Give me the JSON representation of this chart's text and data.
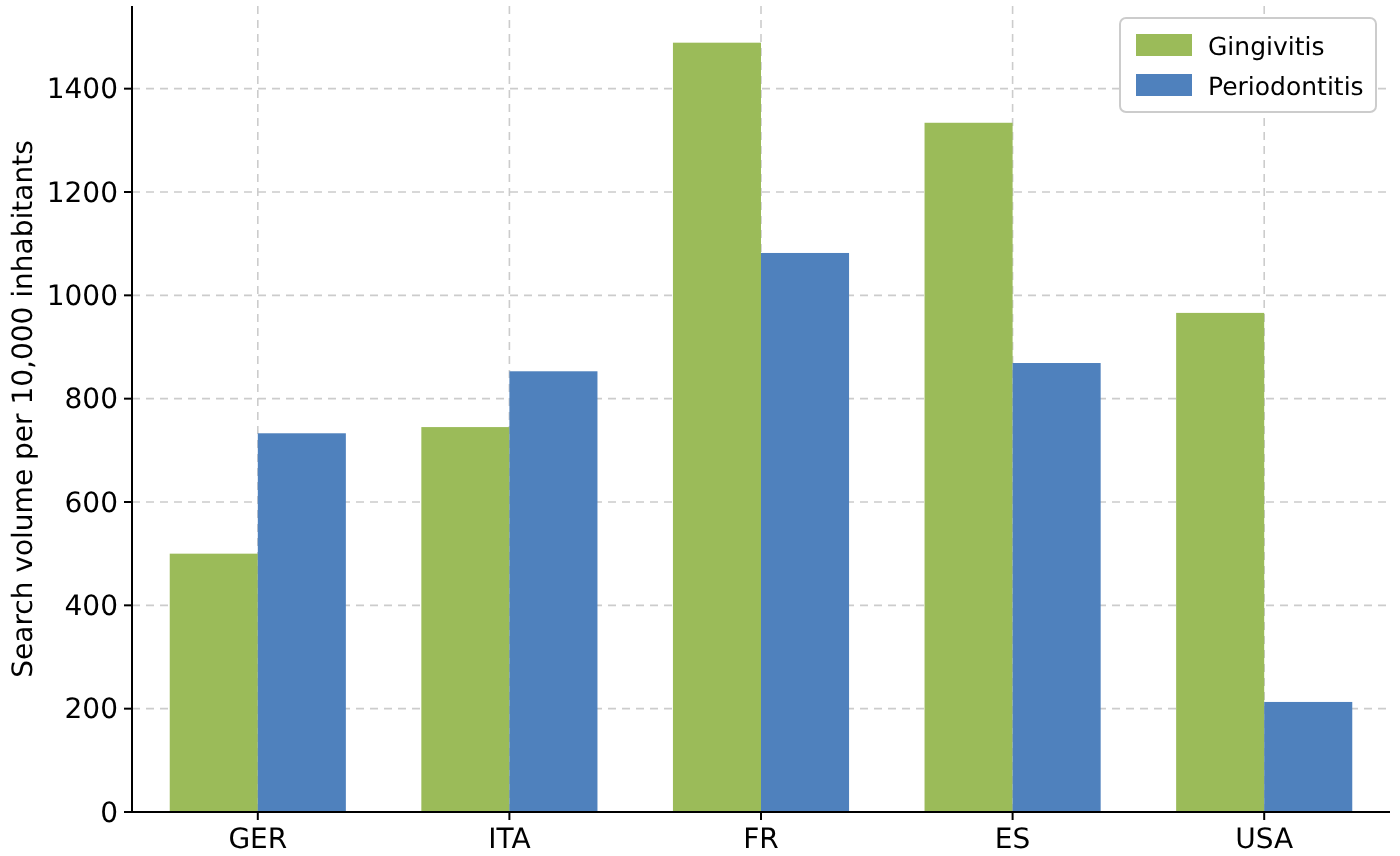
{
  "chart_data": {
    "type": "bar",
    "ylabel": "Search volume per 10,000 inhabitants",
    "categories": [
      "GER",
      "ITA",
      "FR",
      "ES",
      "USA"
    ],
    "series": [
      {
        "name": "Gingivitis",
        "color": "#9bbb59",
        "values": [
          500,
          745,
          1489,
          1334,
          966
        ]
      },
      {
        "name": "Periodontitis",
        "color": "#4f81bd",
        "values": [
          733,
          853,
          1082,
          869,
          213
        ]
      }
    ],
    "ylim": [
      0,
      1560
    ],
    "yticks": [
      0,
      200,
      400,
      600,
      800,
      1000,
      1200,
      1400
    ],
    "grid": true,
    "legend": "top right"
  }
}
